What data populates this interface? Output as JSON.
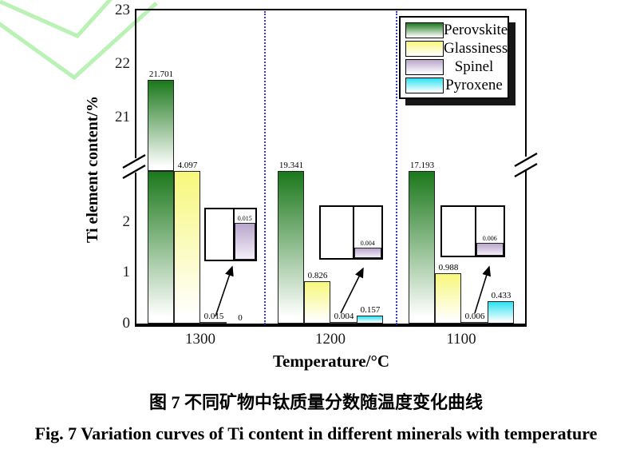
{
  "figure": {
    "caption_zh": "图 7 不同矿物中钛质量分数随温度变化曲线",
    "caption_en": "Fig. 7  Variation curves of Ti content in different minerals with temperature"
  },
  "chart_data": {
    "type": "bar",
    "title": "",
    "xlabel": "Temperature/°C",
    "ylabel": "Ti element content/%",
    "categories": [
      "1300",
      "1200",
      "1100"
    ],
    "series": [
      {
        "name": "Perovskite",
        "color": "#1b781b",
        "values": [
          21.701,
          19.341,
          17.193
        ]
      },
      {
        "name": "Glassiness",
        "color": "#f7f77c",
        "values": [
          4.097,
          0.826,
          0.988
        ]
      },
      {
        "name": "Spinel",
        "color": "#b9a6cc",
        "values": [
          0.015,
          0.004,
          0.006
        ]
      },
      {
        "name": "Pyroxene",
        "color": "#2de2f2",
        "values": [
          0,
          0.157,
          0.433
        ]
      }
    ],
    "axis_break": {
      "lower_range": [
        0,
        3
      ],
      "upper_range": [
        20,
        23
      ]
    },
    "yticks_lower": [
      0,
      1,
      2
    ],
    "yticks_upper": [
      21,
      22,
      23
    ],
    "legend_position": "top-right",
    "group_separator_color": "#3434ee",
    "insets": {
      "description": "magnified views of Spinel bars",
      "values": [
        0.015,
        0.004,
        0.006
      ]
    },
    "grid": false
  }
}
